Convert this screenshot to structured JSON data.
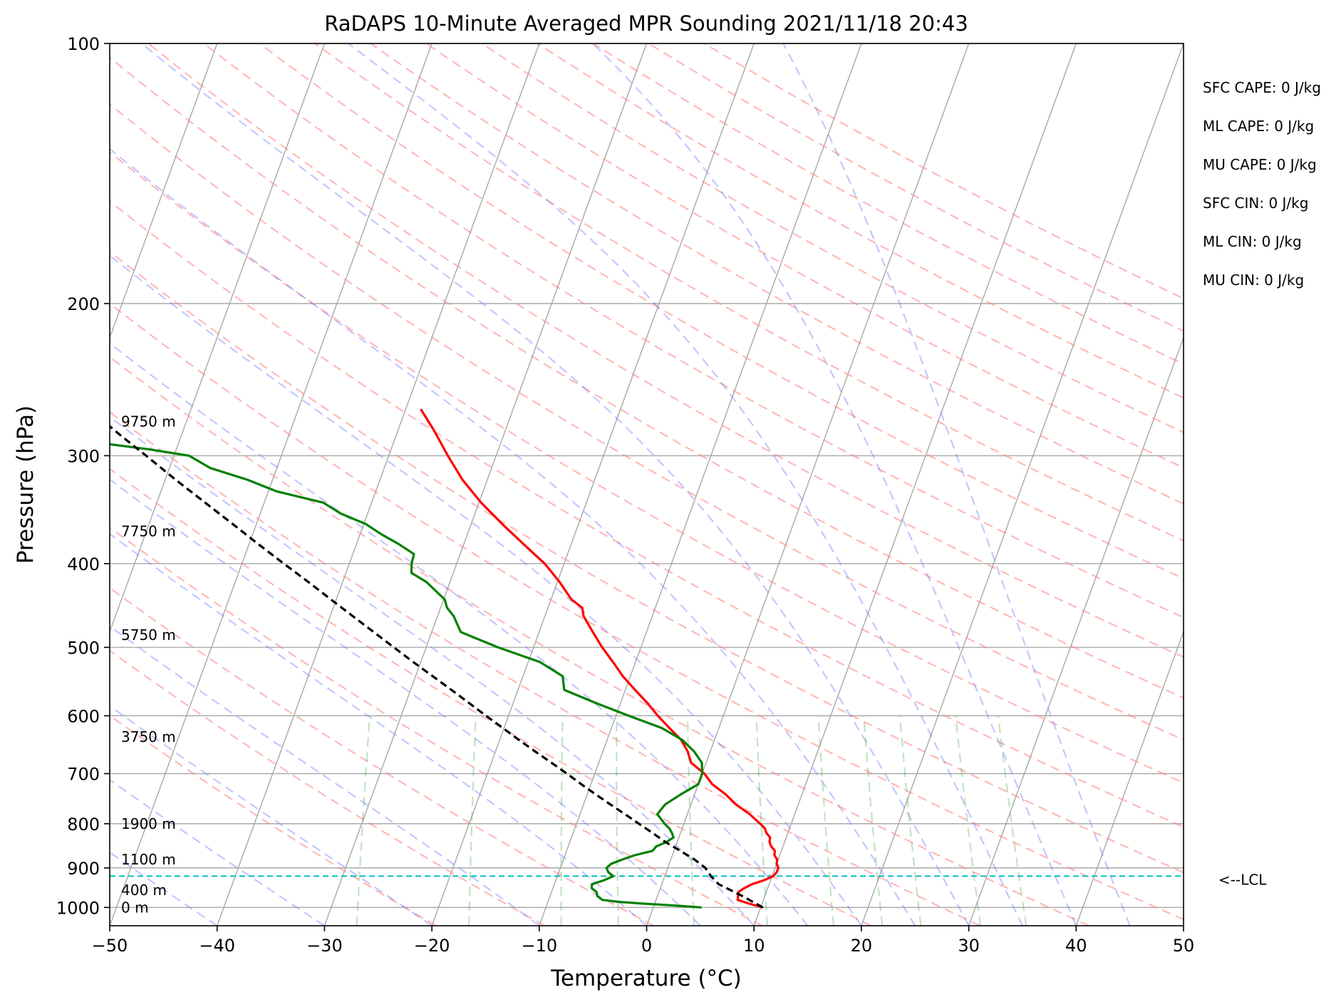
{
  "chart_data": {
    "type": "skew-t",
    "title": "RaDAPS 10-Minute Averaged MPR Sounding 2021/11/18 20:43",
    "xlabel": "Temperature (°C)",
    "ylabel": "Pressure (hPa)",
    "xlim": [
      -50,
      50
    ],
    "ylim": [
      1050,
      100
    ],
    "y_scale": "log",
    "grid": true,
    "x_ticks": [
      -50,
      -40,
      -30,
      -20,
      -10,
      0,
      10,
      20,
      30,
      40,
      50
    ],
    "x_tick_labels": [
      "−50",
      "−40",
      "−30",
      "−20",
      "−10",
      "0",
      "10",
      "20",
      "30",
      "40",
      "50"
    ],
    "y_ticks": [
      100,
      200,
      300,
      400,
      500,
      600,
      700,
      800,
      900,
      1000
    ],
    "y_tick_labels": [
      "100",
      "200",
      "300",
      "400",
      "500",
      "600",
      "700",
      "800",
      "900",
      "1000"
    ],
    "height_labels": [
      {
        "text": "0 m",
        "p": 1000
      },
      {
        "text": "400 m",
        "p": 955
      },
      {
        "text": "1100 m",
        "p": 880
      },
      {
        "text": "1900 m",
        "p": 800
      },
      {
        "text": "3750 m",
        "p": 635
      },
      {
        "text": "5750 m",
        "p": 484
      },
      {
        "text": "7750 m",
        "p": 367
      },
      {
        "text": "9750 m",
        "p": 274
      }
    ],
    "lcl": {
      "p": 920,
      "label": "<--LCL"
    },
    "indices": [
      "SFC CAPE: 0 J/kg",
      "ML CAPE: 0 J/kg",
      "MU CAPE: 0 J/kg",
      "SFC CIN: 0 J/kg",
      "ML CIN: 0 J/kg",
      "MU CIN: 0 J/kg"
    ],
    "series": [
      {
        "color": "#ff0000",
        "pressure": [
          1000,
          990,
          980,
          970,
          960,
          950,
          940,
          930,
          920,
          910,
          900,
          890,
          880,
          870,
          860,
          850,
          840,
          830,
          820,
          810,
          800,
          780,
          760,
          740,
          720,
          700,
          680,
          660,
          640,
          620,
          600,
          580,
          560,
          540,
          520,
          500,
          480,
          460,
          450,
          440,
          420,
          400,
          380,
          360,
          340,
          320,
          300,
          280,
          265
        ],
        "temperature": [
          10.2,
          8.8,
          7.6,
          7.5,
          7.4,
          7.8,
          8.4,
          9.4,
          10.1,
          10.3,
          10.3,
          10.0,
          9.9,
          9.5,
          9.4,
          8.9,
          8.6,
          8.5,
          8.0,
          7.7,
          7.1,
          5.8,
          4.2,
          2.9,
          1.3,
          0.2,
          -1.4,
          -2.1,
          -3.1,
          -4.6,
          -6.1,
          -7.5,
          -9.1,
          -10.7,
          -12.1,
          -13.6,
          -15.0,
          -16.4,
          -16.8,
          -18.1,
          -19.8,
          -21.8,
          -24.4,
          -27.1,
          -29.8,
          -32.3,
          -34.5,
          -36.7,
          -38.6
        ]
      },
      {
        "color": "#008000",
        "pressure": [
          1000,
          995,
          990,
          985,
          980,
          970,
          960,
          950,
          940,
          930,
          920,
          910,
          900,
          890,
          880,
          870,
          860,
          850,
          840,
          830,
          820,
          810,
          800,
          780,
          760,
          740,
          720,
          700,
          680,
          660,
          640,
          620,
          600,
          580,
          560,
          540,
          520,
          500,
          480,
          460,
          450,
          440,
          420,
          410,
          400,
          390,
          380,
          370,
          360,
          350,
          340,
          330,
          320,
          310,
          300,
          295,
          290,
          285,
          280,
          275,
          270
        ],
        "temperature": [
          4.5,
          2.0,
          -1.0,
          -3.5,
          -5.0,
          -5.6,
          -5.8,
          -6.4,
          -6.5,
          -5.5,
          -4.8,
          -5.4,
          -5.7,
          -5.4,
          -4.5,
          -3.5,
          -2.0,
          -1.8,
          -1.0,
          -0.5,
          -0.8,
          -1.2,
          -1.8,
          -2.8,
          -2.4,
          -1.3,
          0.0,
          0.0,
          -0.4,
          -1.5,
          -3.0,
          -5.3,
          -8.8,
          -12.3,
          -15.7,
          -16.3,
          -18.9,
          -23.3,
          -27.3,
          -28.5,
          -29.4,
          -29.9,
          -32.2,
          -33.9,
          -34.2,
          -34.3,
          -36.0,
          -38.0,
          -39.8,
          -42.5,
          -44.5,
          -49.2,
          -52.3,
          -56.2,
          -58.6,
          -62.5,
          -67.3,
          -72.0,
          -74.5,
          -80.2,
          -81.8
        ]
      },
      {
        "color": "#000000",
        "dashed": true,
        "pressure": [
          1000,
          970,
          940,
          920,
          900,
          880,
          860,
          840,
          820,
          800,
          780,
          760,
          740,
          720,
          700,
          680,
          660,
          640,
          620,
          600,
          580,
          560,
          540,
          520,
          500,
          480,
          460,
          440,
          420,
          400,
          380,
          360,
          340,
          320,
          300,
          285,
          265
        ],
        "temperature": [
          10.2,
          7.9,
          5.3,
          4.3,
          3.5,
          2.2,
          0.6,
          -1.1,
          -2.6,
          -4.2,
          -5.8,
          -7.5,
          -9.2,
          -10.9,
          -12.6,
          -14.4,
          -16.3,
          -18.2,
          -20.1,
          -22.1,
          -24.1,
          -26.2,
          -28.4,
          -30.7,
          -33.0,
          -35.4,
          -37.9,
          -40.5,
          -43.2,
          -46.1,
          -49.1,
          -52.2,
          -55.5,
          -59.0,
          -62.6,
          -65.5,
          -69.5
        ]
      }
    ]
  }
}
